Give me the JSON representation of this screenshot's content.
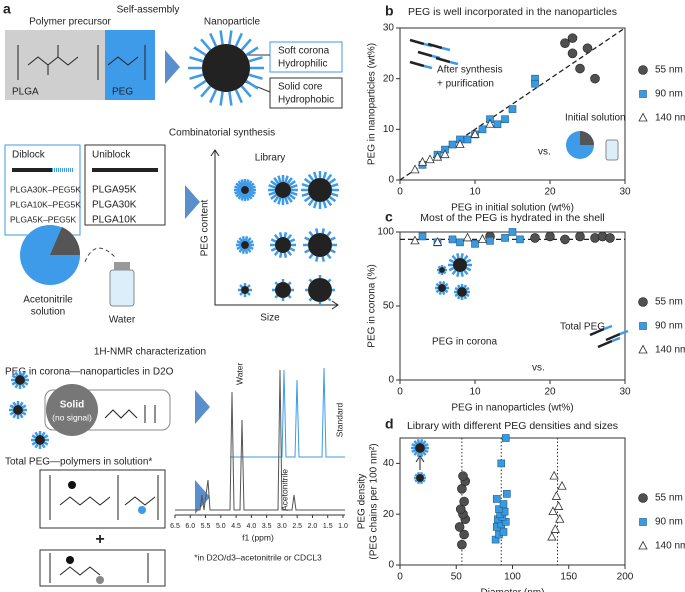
{
  "panel_labels": [
    "a",
    "b",
    "c",
    "d"
  ],
  "panel_a": {
    "self_assembly": "Self-assembly",
    "polymer_precursor": "Polymer precursor",
    "plga": "PLGA",
    "peg": "PEG",
    "nanoparticle": "Nanoparticle",
    "soft_corona": "Soft corona",
    "hydrophilic": "Hydrophilic",
    "solid_core": "Solid core",
    "hydrophobic": "Hydrophobic",
    "combinatorial": "Combinatorial synthesis",
    "diblock": "Diblock",
    "uniblock": "Uniblock",
    "diblock_items": [
      "PLGA30K–PEG5K",
      "PLGA10K–PEG5K",
      "PLGA5K–PEG5K"
    ],
    "uniblock_items": [
      "PLGA95K",
      "PLGA30K",
      "PLGA10K"
    ],
    "acetonitrile": "Acetonitrile",
    "solution": "solution",
    "water": "Water",
    "library": "Library",
    "peg_content": "PEG content",
    "size": "Size",
    "nmr_title": "1H-NMR characterization",
    "peg_corona": "PEG in corona—nanoparticles in D2O",
    "solid": "Solid",
    "no_signal": "(no signal)",
    "total_peg": "Total PEG—polymers in solution*",
    "plus": "+",
    "spectrum_labels": [
      "Water",
      "Acetonitrile",
      "Standard"
    ],
    "ppm_axis": "f1 (ppm)",
    "ppm_ticks": [
      {
        "value": 6.5,
        "label": "6.5"
      },
      {
        "value": 6,
        "label": "6.0"
      },
      {
        "value": 5.5,
        "label": "5.5"
      },
      {
        "value": 5,
        "label": "5.0"
      },
      {
        "value": 4.5,
        "label": "4.5"
      },
      {
        "value": 4,
        "label": "4.0"
      },
      {
        "value": 3.5,
        "label": "3.5"
      },
      {
        "value": 3,
        "label": "3.0"
      },
      {
        "value": 2.5,
        "label": "2.5"
      },
      {
        "value": 2,
        "label": "2.0"
      },
      {
        "value": 1.5,
        "label": "1.5"
      },
      {
        "value": 1,
        "label": "1.0"
      }
    ],
    "footnote": "*in D2O/d3–acetonitrile or CDCL3"
  },
  "chart_data": [
    {
      "type": "scatter",
      "title": "PEG is well incorporated in the nanoparticles",
      "x_label": "PEG in initial solution (wt%)",
      "y_label": "PEG in nanoparticles (wt%)",
      "xlim": [
        0,
        30
      ],
      "ylim": [
        0,
        30
      ],
      "xticks": [
        0,
        10,
        20,
        30
      ],
      "yticks": [
        0,
        10,
        20,
        30
      ],
      "reference_line": {
        "x": [
          0,
          30
        ],
        "values": [
          0,
          30
        ]
      },
      "annotations": [
        "After synthesis",
        "+ purification",
        "Initial solution",
        "vs."
      ],
      "series": [
        {
          "name": "55 nm",
          "marker": "circle",
          "color": "#505050",
          "x": [
            22,
            23,
            23,
            24,
            26,
            25
          ],
          "values": [
            27,
            28,
            25,
            22,
            20,
            26
          ]
        },
        {
          "name": "90 nm",
          "marker": "square",
          "color": "#3a9ae0",
          "x": [
            3,
            5,
            6,
            7,
            8,
            9,
            10,
            11,
            12,
            13,
            14,
            15,
            18,
            18
          ],
          "values": [
            3,
            5,
            6,
            7,
            8,
            8,
            9,
            10,
            12,
            11,
            12,
            14,
            20,
            19
          ]
        },
        {
          "name": "140 nm",
          "marker": "triangle",
          "color": "#ffffff",
          "x": [
            2,
            3,
            4,
            5,
            6,
            8,
            10,
            12
          ],
          "values": [
            2,
            3.5,
            4,
            4.5,
            5,
            7,
            9,
            11
          ]
        }
      ]
    },
    {
      "type": "scatter",
      "title": "Most of the PEG is hydrated in the shell",
      "x_label": "PEG in nanoparticles (wt%)",
      "y_label": "PEG in corona (%)",
      "xlim": [
        0,
        30
      ],
      "ylim": [
        0,
        100
      ],
      "xticks": [
        0,
        10,
        20,
        30
      ],
      "yticks": [
        0,
        50,
        100
      ],
      "reference_line": {
        "x": [
          0,
          30
        ],
        "values": [
          95,
          95
        ]
      },
      "annotations": [
        "PEG in corona",
        "Total PEG",
        "vs."
      ],
      "series": [
        {
          "name": "55 nm",
          "marker": "circle",
          "color": "#505050",
          "x": [
            12,
            18,
            20,
            22,
            24,
            26,
            27,
            28
          ],
          "values": [
            97,
            96,
            97,
            95,
            97,
            96,
            97,
            96
          ]
        },
        {
          "name": "90 nm",
          "marker": "square",
          "color": "#3a9ae0",
          "x": [
            3,
            5,
            7,
            8,
            10,
            12,
            14,
            15,
            16
          ],
          "values": [
            97,
            93,
            95,
            93,
            92,
            94,
            96,
            100,
            95
          ]
        },
        {
          "name": "140 nm",
          "marker": "triangle",
          "color": "#ffffff",
          "x": [
            2,
            5,
            9,
            11
          ],
          "values": [
            94,
            93,
            96,
            95
          ]
        }
      ]
    },
    {
      "type": "scatter",
      "title": "Library with different PEG densities and sizes",
      "x_label": "Diameter (nm)",
      "y_label": "PEG density",
      "y_label_2": "(PEG chains per 100 nm²)",
      "xlim": [
        0,
        200
      ],
      "ylim": [
        0,
        50
      ],
      "xticks": [
        0,
        50,
        100,
        150,
        200
      ],
      "yticks": [
        0,
        20,
        40
      ],
      "reference_lines_x": [
        55,
        90,
        140
      ],
      "series": [
        {
          "name": "55 nm",
          "marker": "circle",
          "color": "#505050",
          "x": [
            55,
            57,
            53,
            58,
            56,
            54,
            57,
            55,
            58,
            56
          ],
          "values": [
            8,
            12,
            15,
            18,
            20,
            22,
            25,
            30,
            33,
            35
          ]
        },
        {
          "name": "90 nm",
          "marker": "square",
          "color": "#3a9ae0",
          "x": [
            85,
            88,
            92,
            86,
            90,
            94,
            87,
            91,
            89,
            93,
            88,
            92,
            86,
            95,
            90,
            94
          ],
          "values": [
            10,
            12,
            13,
            15,
            16,
            17,
            18,
            19,
            20,
            21,
            22,
            24,
            26,
            28,
            40,
            50
          ]
        },
        {
          "name": "140 nm",
          "marker": "triangle",
          "color": "#ffffff",
          "x": [
            135,
            138,
            142,
            136,
            141,
            139,
            144,
            137
          ],
          "values": [
            11,
            14,
            18,
            21,
            23,
            27,
            31,
            35
          ]
        }
      ]
    }
  ]
}
